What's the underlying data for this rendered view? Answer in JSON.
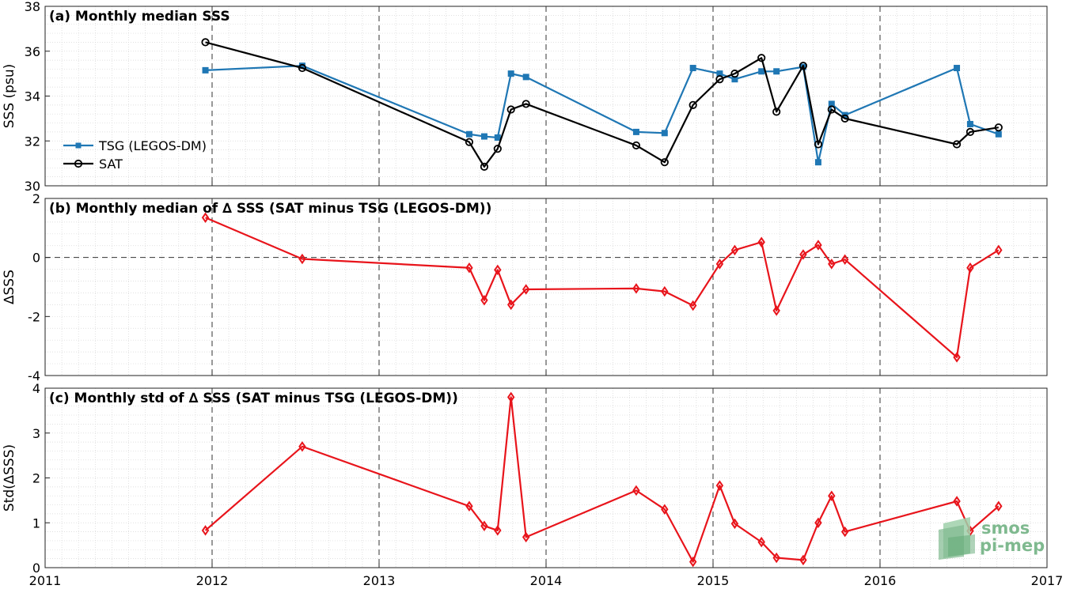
{
  "logo": {
    "line1": "smos",
    "line2": "pi-mep"
  },
  "colors": {
    "tsg": "#1f77b4",
    "sat": "#000000",
    "delta": "#e8141b",
    "grid": "#d9d9d9",
    "logo": "#7fb98f"
  },
  "chart_data": [
    {
      "type": "line",
      "title": "(a) Monthly median SSS",
      "xlabel": "",
      "ylabel": "SSS (psu)",
      "xlim": [
        2011,
        2017
      ],
      "ylim": [
        30,
        38
      ],
      "yticks": [
        30,
        32,
        34,
        36,
        38
      ],
      "grid": true,
      "legend": "bottom-left",
      "series": [
        {
          "name": "TSG (LEGOS-DM)",
          "color": "#1f77b4",
          "marker": "square",
          "x": [
            2011.96,
            2012.54,
            2013.54,
            2013.63,
            2013.71,
            2013.79,
            2013.88,
            2014.54,
            2014.71,
            2014.88,
            2015.04,
            2015.13,
            2015.29,
            2015.38,
            2015.54,
            2015.63,
            2015.71,
            2015.79,
            2016.46,
            2016.54,
            2016.71
          ],
          "y": [
            35.15,
            35.35,
            32.3,
            32.2,
            32.15,
            35.0,
            34.85,
            32.4,
            32.35,
            35.25,
            35.0,
            34.75,
            35.1,
            35.1,
            35.3,
            31.05,
            33.65,
            33.15,
            35.25,
            32.75,
            32.3
          ]
        },
        {
          "name": "SAT",
          "color": "#000000",
          "marker": "circle",
          "x": [
            2011.96,
            2012.54,
            2013.54,
            2013.63,
            2013.71,
            2013.79,
            2013.88,
            2014.54,
            2014.71,
            2014.88,
            2015.04,
            2015.13,
            2015.29,
            2015.38,
            2015.54,
            2015.63,
            2015.71,
            2015.79,
            2016.46,
            2016.54,
            2016.71
          ],
          "y": [
            36.4,
            35.25,
            31.95,
            30.85,
            31.65,
            33.4,
            33.65,
            31.8,
            31.05,
            33.6,
            34.75,
            35.0,
            35.7,
            33.3,
            35.35,
            31.85,
            33.4,
            33.0,
            31.85,
            32.4,
            32.6
          ]
        }
      ]
    },
    {
      "type": "line",
      "title": "(b) Monthly median of ∆ SSS (SAT minus TSG (LEGOS-DM))",
      "xlabel": "",
      "ylabel": "∆SSS",
      "xlim": [
        2011,
        2017
      ],
      "ylim": [
        -4,
        2
      ],
      "yticks": [
        -4,
        -2,
        0,
        2
      ],
      "reference_line": 0,
      "grid": true,
      "series": [
        {
          "color": "#e8141b",
          "marker": "diamond",
          "x": [
            2011.96,
            2012.54,
            2013.54,
            2013.63,
            2013.71,
            2013.79,
            2013.88,
            2014.54,
            2014.71,
            2014.88,
            2015.04,
            2015.13,
            2015.29,
            2015.38,
            2015.54,
            2015.63,
            2015.71,
            2015.79,
            2016.46,
            2016.54,
            2016.71
          ],
          "y": [
            1.35,
            -0.05,
            -0.35,
            -1.45,
            -0.42,
            -1.6,
            -1.08,
            -1.05,
            -1.15,
            -1.63,
            -0.22,
            0.25,
            0.52,
            -1.8,
            0.1,
            0.42,
            -0.22,
            -0.07,
            -3.38,
            -0.35,
            0.25
          ]
        }
      ]
    },
    {
      "type": "line",
      "title": "(c) Monthly std of ∆ SSS (SAT minus TSG (LEGOS-DM))",
      "xlabel": "",
      "ylabel": "Std(∆SSS)",
      "xlim": [
        2011,
        2017
      ],
      "ylim": [
        0,
        4
      ],
      "yticks": [
        0,
        1,
        2,
        3,
        4
      ],
      "xticks": [
        2011,
        2012,
        2013,
        2014,
        2015,
        2016,
        2017
      ],
      "grid": true,
      "series": [
        {
          "color": "#e8141b",
          "marker": "diamond",
          "x": [
            2011.96,
            2012.54,
            2013.54,
            2013.63,
            2013.71,
            2013.79,
            2013.88,
            2014.54,
            2014.71,
            2014.88,
            2015.04,
            2015.13,
            2015.29,
            2015.38,
            2015.54,
            2015.63,
            2015.71,
            2015.79,
            2016.46,
            2016.54,
            2016.71
          ],
          "y": [
            0.83,
            2.7,
            1.37,
            0.93,
            0.83,
            3.8,
            0.68,
            1.72,
            1.3,
            0.13,
            1.83,
            0.98,
            0.57,
            0.22,
            0.17,
            1.0,
            1.6,
            0.8,
            1.48,
            0.82,
            1.37
          ]
        }
      ]
    }
  ]
}
